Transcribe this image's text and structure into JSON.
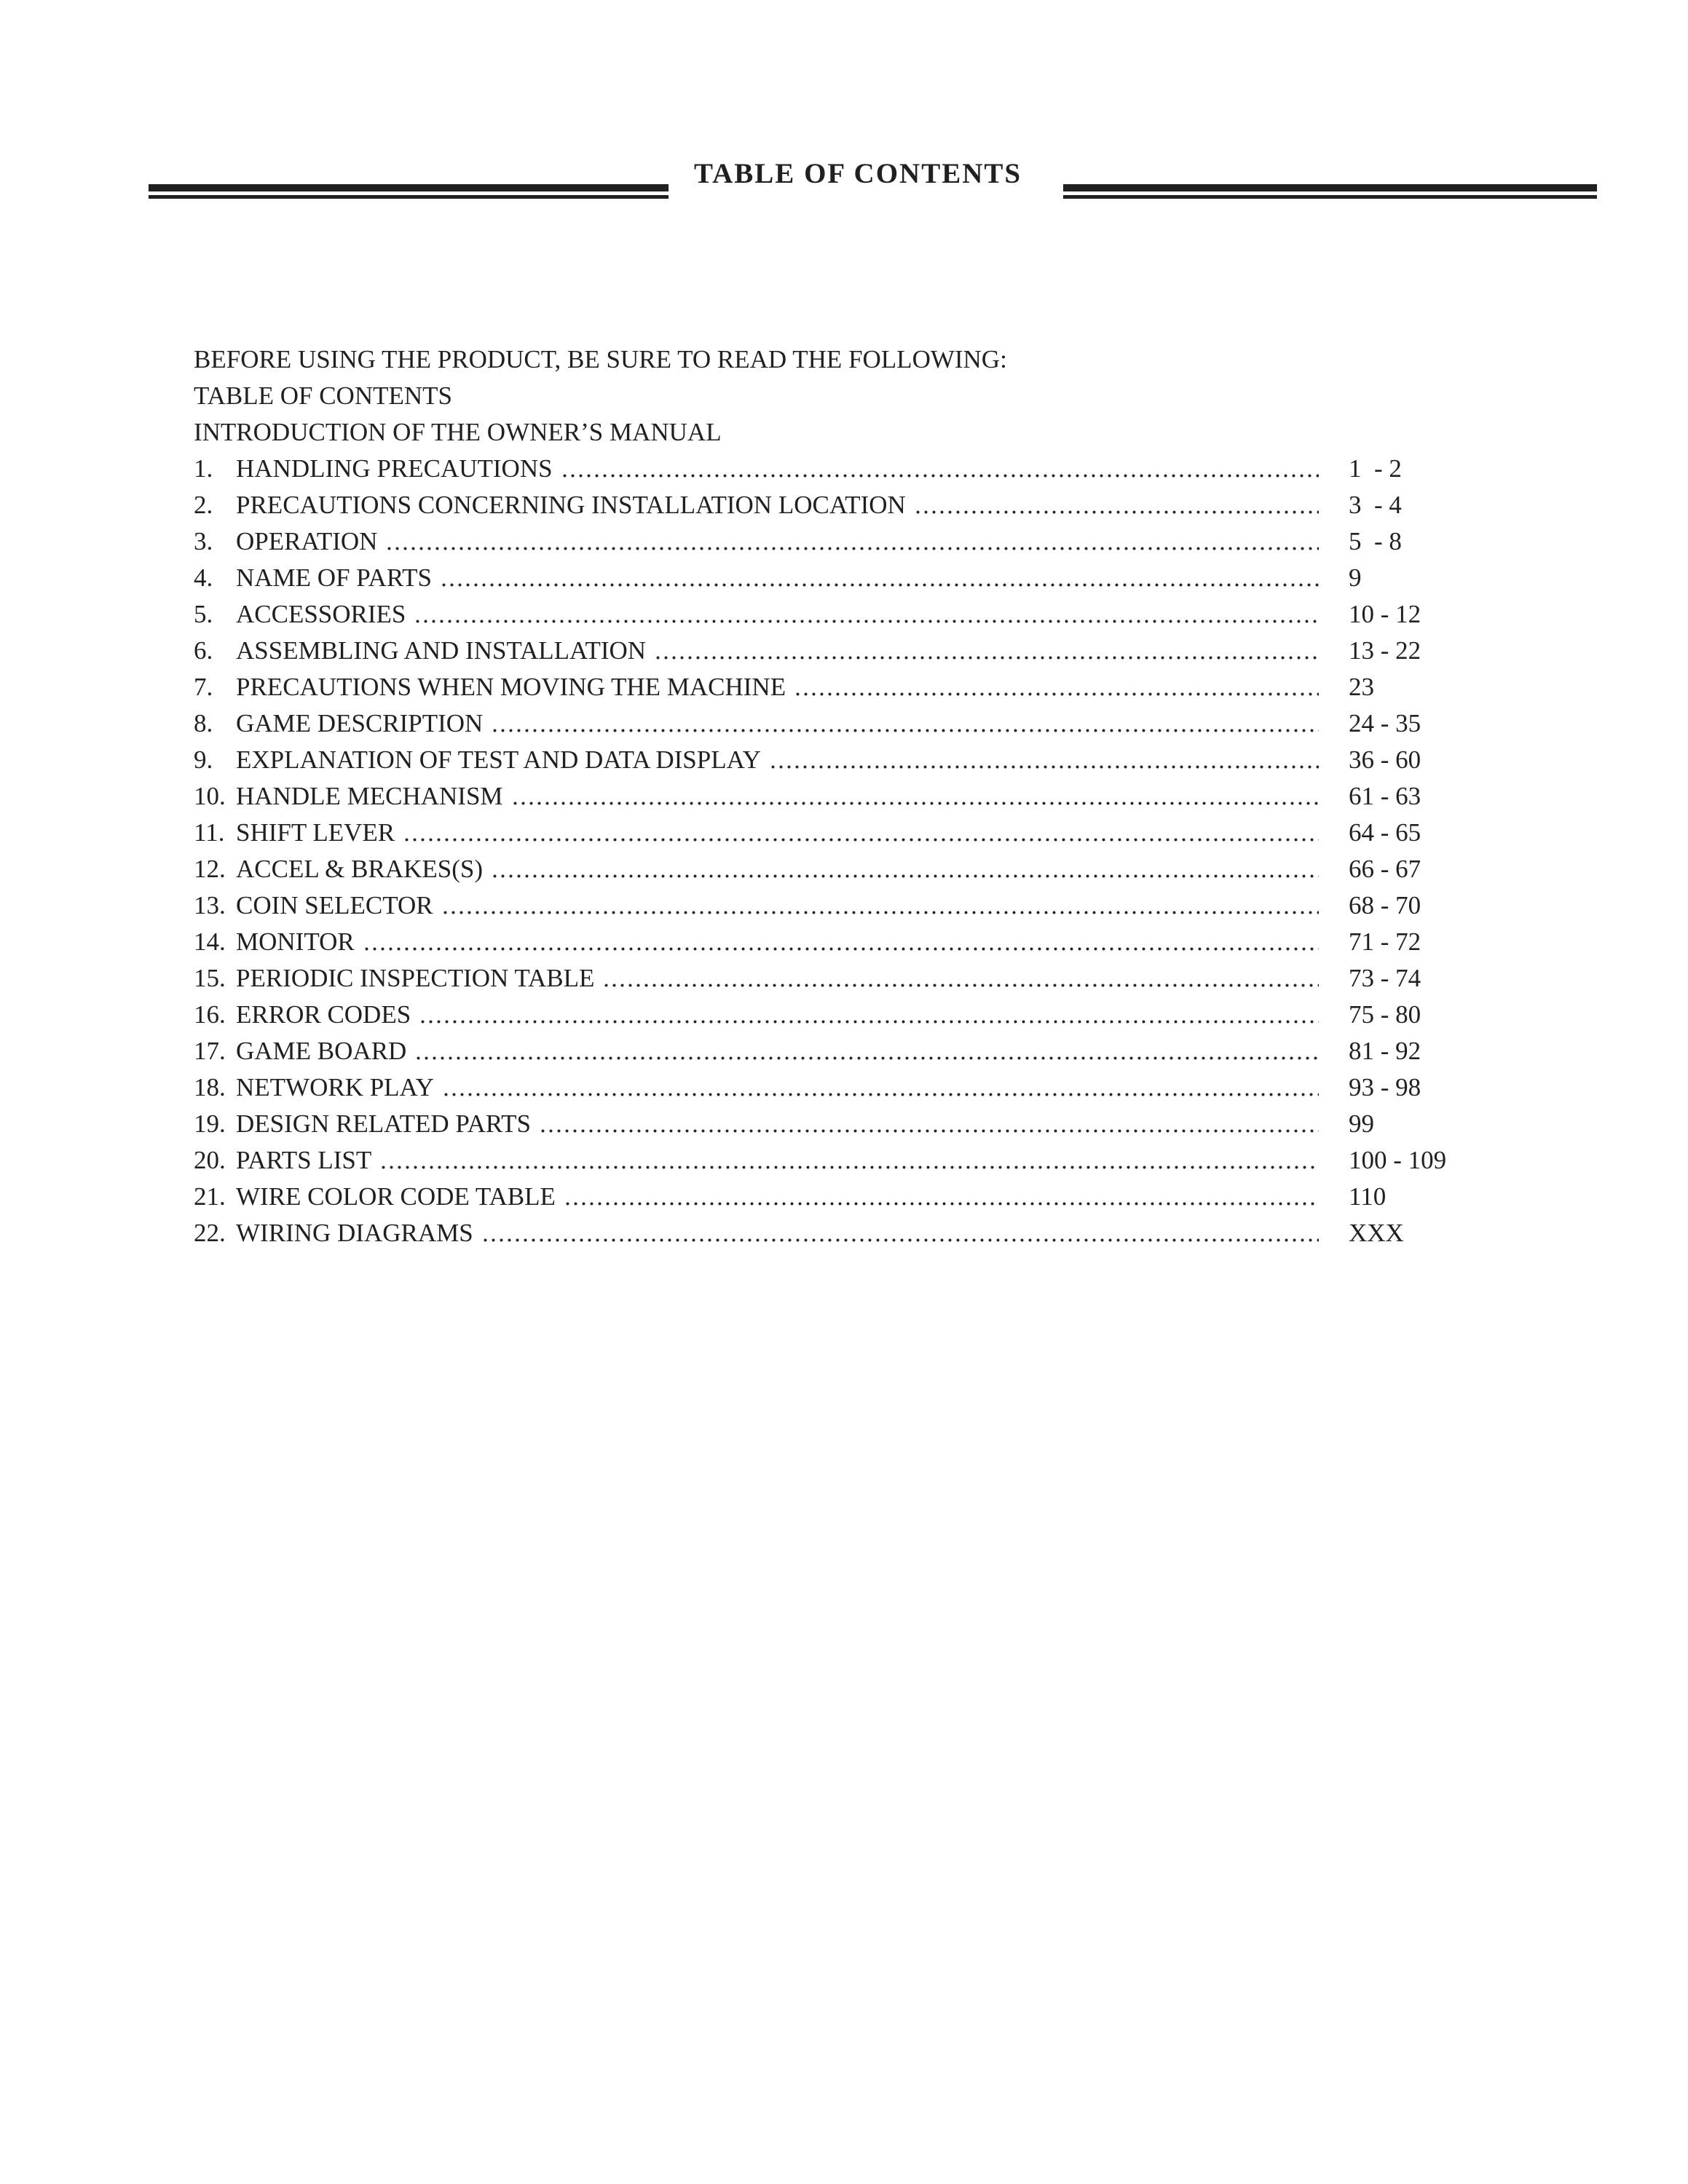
{
  "page": {
    "title": "TABLE OF CONTENTS"
  },
  "intro_lines": [
    "BEFORE USING THE PRODUCT, BE SURE TO READ THE FOLLOWING:",
    "TABLE OF CONTENTS",
    "INTRODUCTION OF THE OWNER’S MANUAL"
  ],
  "toc": {
    "entries": [
      {
        "num": "1.",
        "title": "HANDLING PRECAUTIONS",
        "pages": "1  - 2"
      },
      {
        "num": "2.",
        "title": "PRECAUTIONS CONCERNING INSTALLATION LOCATION",
        "pages": "3  - 4"
      },
      {
        "num": "3.",
        "title": "OPERATION",
        "pages": "5  - 8"
      },
      {
        "num": "4.",
        "title": "NAME OF PARTS",
        "pages": "9"
      },
      {
        "num": "5.",
        "title": "ACCESSORIES",
        "pages": "10 - 12"
      },
      {
        "num": "6.",
        "title": "ASSEMBLING AND INSTALLATION",
        "pages": "13 - 22"
      },
      {
        "num": "7.",
        "title": "PRECAUTIONS WHEN MOVING THE MACHINE",
        "pages": "23"
      },
      {
        "num": "8.",
        "title": "GAME DESCRIPTION",
        "pages": "24 - 35"
      },
      {
        "num": "9.",
        "title": "EXPLANATION OF TEST AND DATA DISPLAY",
        "pages": "36 - 60"
      },
      {
        "num": "10.",
        "title": "HANDLE MECHANISM",
        "pages": "61 - 63"
      },
      {
        "num": "11.",
        "title": "SHIFT LEVER",
        "pages": "64 - 65"
      },
      {
        "num": "12.",
        "title": "ACCEL & BRAKES(S)",
        "pages": "66 - 67"
      },
      {
        "num": "13.",
        "title": "COIN SELECTOR",
        "pages": "68 - 70"
      },
      {
        "num": "14.",
        "title": "MONITOR",
        "pages": "71 - 72"
      },
      {
        "num": "15.",
        "title": "PERIODIC INSPECTION TABLE",
        "pages": "73 - 74"
      },
      {
        "num": "16.",
        "title": "ERROR CODES",
        "pages": "75 - 80"
      },
      {
        "num": "17.",
        "title": "GAME BOARD",
        "pages": "81 - 92"
      },
      {
        "num": "18.",
        "title": "NETWORK PLAY",
        "pages": "93 - 98"
      },
      {
        "num": "19.",
        "title": "DESIGN RELATED PARTS",
        "pages": "99"
      },
      {
        "num": "20.",
        "title": "PARTS LIST",
        "pages": "100 - 109"
      },
      {
        "num": "21.",
        "title": "WIRE COLOR CODE TABLE",
        "pages": "110"
      },
      {
        "num": "22.",
        "title": "WIRING DIAGRAMS",
        "pages": "XXX"
      }
    ]
  },
  "colors": {
    "ink": "#231f20",
    "background": "#ffffff"
  }
}
